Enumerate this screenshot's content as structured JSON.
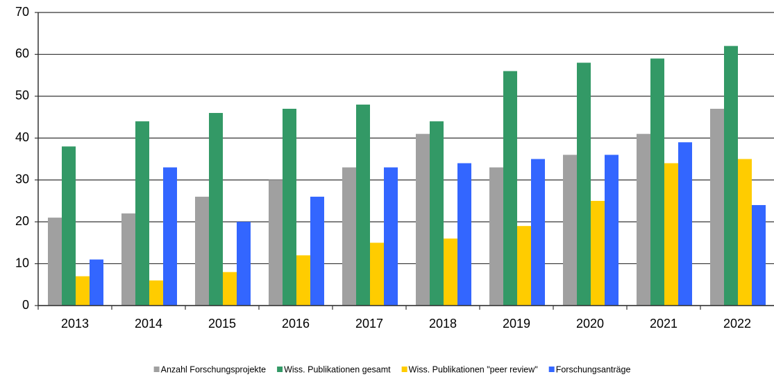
{
  "chart_data": {
    "type": "bar",
    "categories": [
      "2013",
      "2014",
      "2015",
      "2016",
      "2017",
      "2018",
      "2019",
      "2020",
      "2021",
      "2022"
    ],
    "series": [
      {
        "name": "Anzahl Forschungsprojekte",
        "color": "#a0a0a0",
        "values": [
          21,
          22,
          26,
          30,
          33,
          41,
          33,
          36,
          41,
          47
        ]
      },
      {
        "name": "Wiss. Publikationen gesamt",
        "color": "#339966",
        "values": [
          38,
          44,
          46,
          47,
          48,
          44,
          56,
          58,
          59,
          62
        ]
      },
      {
        "name": "Wiss. Publikationen \"peer review\"",
        "color": "#ffcc00",
        "values": [
          7,
          6,
          8,
          12,
          15,
          16,
          19,
          25,
          34,
          35
        ]
      },
      {
        "name": "Forschungsanträge",
        "color": "#3366ff",
        "values": [
          11,
          33,
          20,
          26,
          33,
          34,
          35,
          36,
          39,
          24
        ]
      }
    ],
    "ylim": [
      0,
      70
    ],
    "yticks": [
      0,
      10,
      20,
      30,
      40,
      50,
      60,
      70
    ],
    "grid": true,
    "legend": "bottom"
  }
}
